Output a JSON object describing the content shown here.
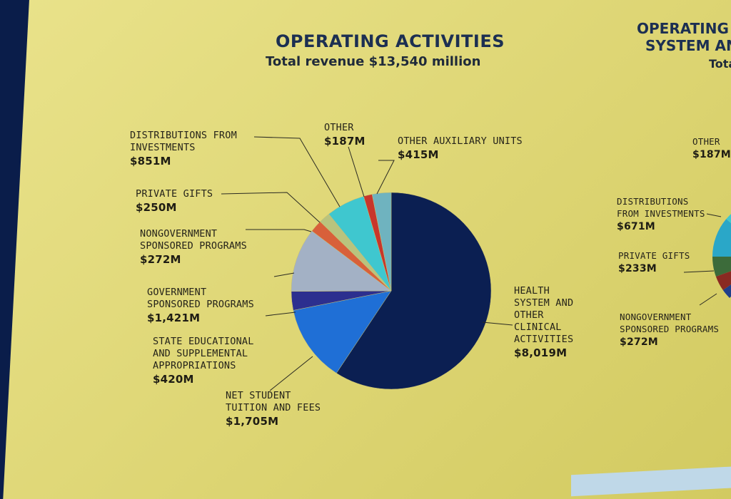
{
  "chart_data": {
    "type": "pie",
    "title": "OPERATING ACTIVITIES",
    "subtitle": "Total revenue $13,540 million",
    "slices": [
      {
        "label": "HEALTH SYSTEM AND OTHER CLINICAL ACTIVITIES",
        "lines": [
          "HEALTH",
          "SYSTEM AND",
          "OTHER",
          "CLINICAL",
          "ACTIVITIES"
        ],
        "value": 8019,
        "value_label": "$8,019M",
        "color": "#0b1f52"
      },
      {
        "label": "NET STUDENT TUITION AND FEES",
        "lines": [
          "NET STUDENT",
          "TUITION AND FEES"
        ],
        "value": 1705,
        "value_label": "$1,705M",
        "color": "#1f6fd6"
      },
      {
        "label": "STATE EDUCATIONAL AND SUPPLEMENTAL APPROPRIATIONS",
        "lines": [
          "STATE EDUCATIONAL",
          "AND SUPPLEMENTAL",
          "APPROPRIATIONS"
        ],
        "value": 420,
        "value_label": "$420M",
        "color": "#2c2f8f"
      },
      {
        "label": "GOVERNMENT SPONSORED PROGRAMS",
        "lines": [
          "GOVERNMENT",
          "SPONSORED PROGRAMS"
        ],
        "value": 1421,
        "value_label": "$1,421M",
        "color": "#a3b1c5"
      },
      {
        "label": "NONGOVERNMENT SPONSORED PROGRAMS",
        "lines": [
          "NONGOVERNMENT",
          "SPONSORED PROGRAMS"
        ],
        "value": 272,
        "value_label": "$272M",
        "color": "#d8603a"
      },
      {
        "label": "PRIVATE GIFTS",
        "lines": [
          "PRIVATE GIFTS"
        ],
        "value": 250,
        "value_label": "$250M",
        "color": "#b9c37e"
      },
      {
        "label": "DISTRIBUTIONS FROM INVESTMENTS",
        "lines": [
          "DISTRIBUTIONS FROM",
          "INVESTMENTS"
        ],
        "value": 851,
        "value_label": "$851M",
        "color": "#3fc7cf"
      },
      {
        "label": "OTHER",
        "lines": [
          "OTHER"
        ],
        "value": 187,
        "value_label": "$187M",
        "color": "#c8362b"
      },
      {
        "label": "OTHER AUXILIARY UNITS",
        "lines": [
          "OTHER AUXILIARY UNITS"
        ],
        "value": 415,
        "value_label": "$415M",
        "color": "#6fb3bf"
      }
    ]
  },
  "right_chart": {
    "title_lines": [
      "OPERATING A",
      "SYSTEM AN"
    ],
    "subtitle": "Tota",
    "labels": [
      {
        "lines": [
          "OTHER"
        ],
        "value_label": "$187M"
      },
      {
        "lines": [
          "DISTRIBUTIONS",
          "FROM INVESTMENTS"
        ],
        "value_label": "$671M"
      },
      {
        "lines": [
          "PRIVATE GIFTS"
        ],
        "value_label": "$233M"
      },
      {
        "lines": [
          "NONGOVERNMENT",
          "SPONSORED PROGRAMS"
        ],
        "value_label": "$272M"
      }
    ]
  }
}
